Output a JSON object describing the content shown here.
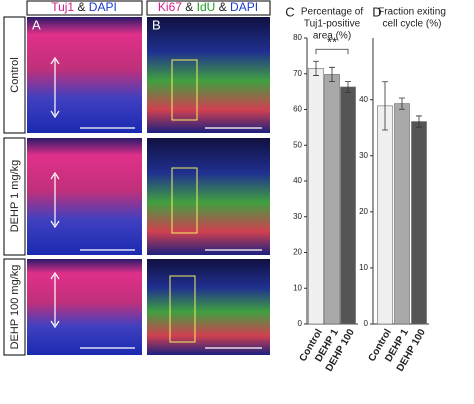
{
  "panels": {
    "row_labels": [
      "Control",
      "DEHP 1 mg/kg",
      "DEHP 100 mg/kg"
    ],
    "a": {
      "letter": "A",
      "header": [
        "Tuj1",
        "&",
        "DAPI"
      ]
    },
    "b": {
      "letter": "B",
      "header": [
        "Ki67",
        "&",
        "IdU",
        "&",
        "DAPI"
      ]
    }
  },
  "chart_data": [
    {
      "type": "bar",
      "letter": "C",
      "title": [
        "Percentage of",
        "Tuj1-positive",
        "area (%)"
      ],
      "categories": [
        "Control",
        "DEHP 1",
        "DEHP 100"
      ],
      "values": [
        71.5,
        69.8,
        66.3
      ],
      "errors": [
        2.0,
        2.0,
        1.5
      ],
      "colors": [
        "#f0f0f0",
        "#a9a9a9",
        "#555555"
      ],
      "ylim": [
        0,
        80
      ],
      "yticks": [
        0,
        10,
        20,
        30,
        40,
        50,
        60,
        70,
        80
      ],
      "annotation": "**"
    },
    {
      "type": "bar",
      "letter": "D",
      "title": [
        "Fraction exiting",
        "cell cycle (%)"
      ],
      "categories": [
        "Control",
        "DEHP 1",
        "DEHP 100"
      ],
      "values": [
        38.9,
        39.3,
        36.1
      ],
      "errors": [
        4.3,
        1.0,
        1.0
      ],
      "colors": [
        "#f0f0f0",
        "#a9a9a9",
        "#555555"
      ],
      "ylim": [
        0,
        51
      ],
      "yticks": [
        0,
        10,
        20,
        30,
        40
      ]
    }
  ]
}
